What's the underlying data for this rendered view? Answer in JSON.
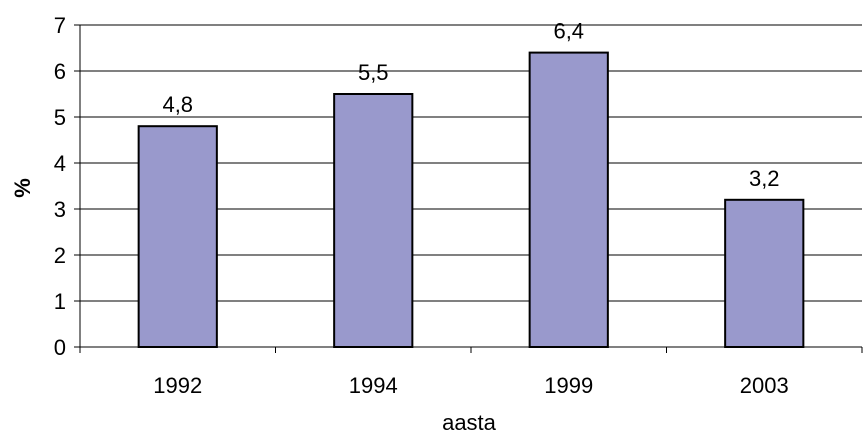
{
  "chart_data": {
    "type": "bar",
    "categories": [
      "1992",
      "1994",
      "1999",
      "2003"
    ],
    "values": [
      4.8,
      5.5,
      6.4,
      3.2
    ],
    "data_labels": [
      "4,8",
      "5,5",
      "6,4",
      "3,2"
    ],
    "xlabel": "aasta",
    "ylabel": "%",
    "ylim": [
      0,
      7
    ],
    "yticks": [
      "0",
      "1",
      "2",
      "3",
      "4",
      "5",
      "6",
      "7"
    ],
    "grid": true,
    "bar_color": "#9999cc",
    "bar_edge_color": "#000000"
  }
}
